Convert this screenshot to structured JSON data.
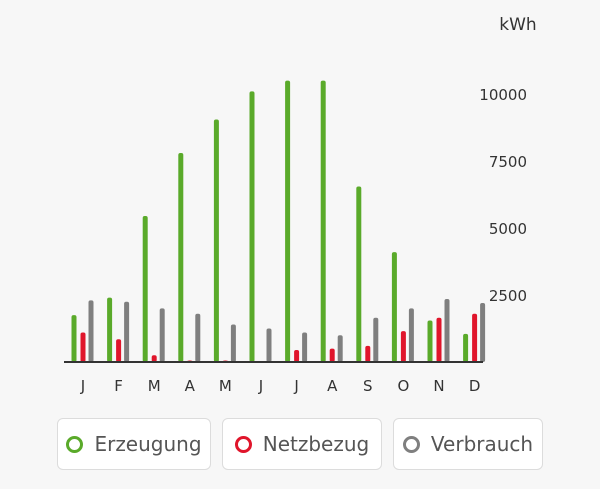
{
  "chart_data": {
    "type": "bar",
    "unit_label": "kWh",
    "categories": [
      "J",
      "F",
      "M",
      "A",
      "M",
      "J",
      "J",
      "A",
      "S",
      "O",
      "N",
      "D"
    ],
    "y_ticks": [
      "2500",
      "5000",
      "7500",
      "10000"
    ],
    "ylim": [
      0,
      11000
    ],
    "series": [
      {
        "name": "Erzeugung",
        "color": "#5aaa2a",
        "values": [
          1750,
          2400,
          5450,
          7800,
          9050,
          10100,
          10500,
          10500,
          6550,
          4100,
          1550,
          1050
        ]
      },
      {
        "name": "Netzbezug",
        "color": "#e0152b",
        "values": [
          1100,
          850,
          250,
          50,
          50,
          0,
          450,
          500,
          600,
          1150,
          1650,
          1800
        ]
      },
      {
        "name": "Verbrauch",
        "color": "#7f7f7f",
        "values": [
          2300,
          2250,
          2000,
          1800,
          1400,
          1250,
          1100,
          1000,
          1650,
          2000,
          2350,
          2200
        ]
      }
    ],
    "grid": false,
    "legend_position": "bottom"
  },
  "legend": [
    {
      "label": "Erzeugung",
      "color": "#5aaa2a"
    },
    {
      "label": "Netzbezug",
      "color": "#e0152b"
    },
    {
      "label": "Verbrauch",
      "color": "#7f7f7f"
    }
  ]
}
